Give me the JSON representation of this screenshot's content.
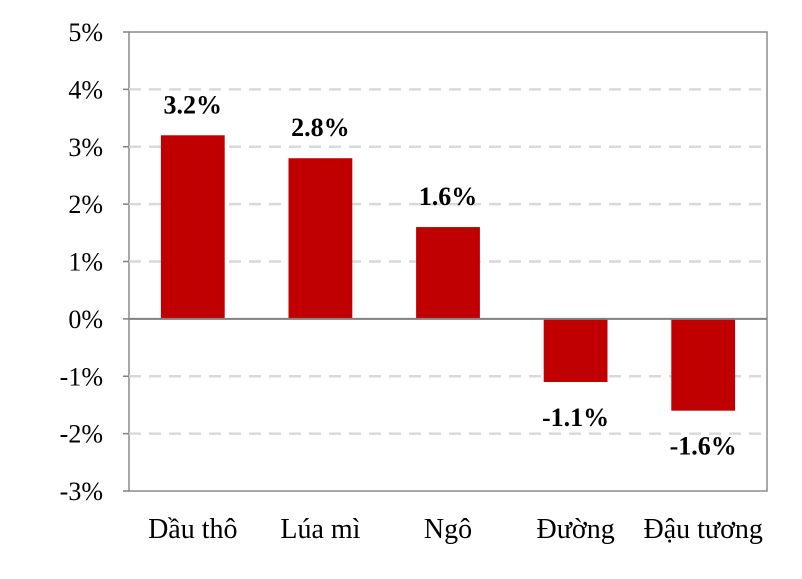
{
  "chart_data": {
    "type": "bar",
    "categories": [
      "Dầu thô",
      "Lúa mì",
      "Ngô",
      "Đường",
      "Đậu tương"
    ],
    "values": [
      3.2,
      2.8,
      1.6,
      -1.1,
      -1.6
    ],
    "data_labels": [
      "3.2%",
      "2.8%",
      "1.6%",
      "-1.1%",
      "-1.6%"
    ],
    "ylim": [
      -3,
      5
    ],
    "yticks": [
      5,
      4,
      3,
      2,
      1,
      0,
      -1,
      -2,
      -3
    ],
    "ytick_labels": [
      "5%",
      "4%",
      "3%",
      "2%",
      "1%",
      "0%",
      "-1%",
      "-2%",
      "-3%"
    ],
    "title": "",
    "xlabel": "",
    "ylabel": "",
    "grid": "horizontal dashed",
    "legend": "none",
    "colors": {
      "bar": "#c00000",
      "grid": "#d9d9d9",
      "axis": "#808080",
      "zero_line": "#808080"
    }
  }
}
